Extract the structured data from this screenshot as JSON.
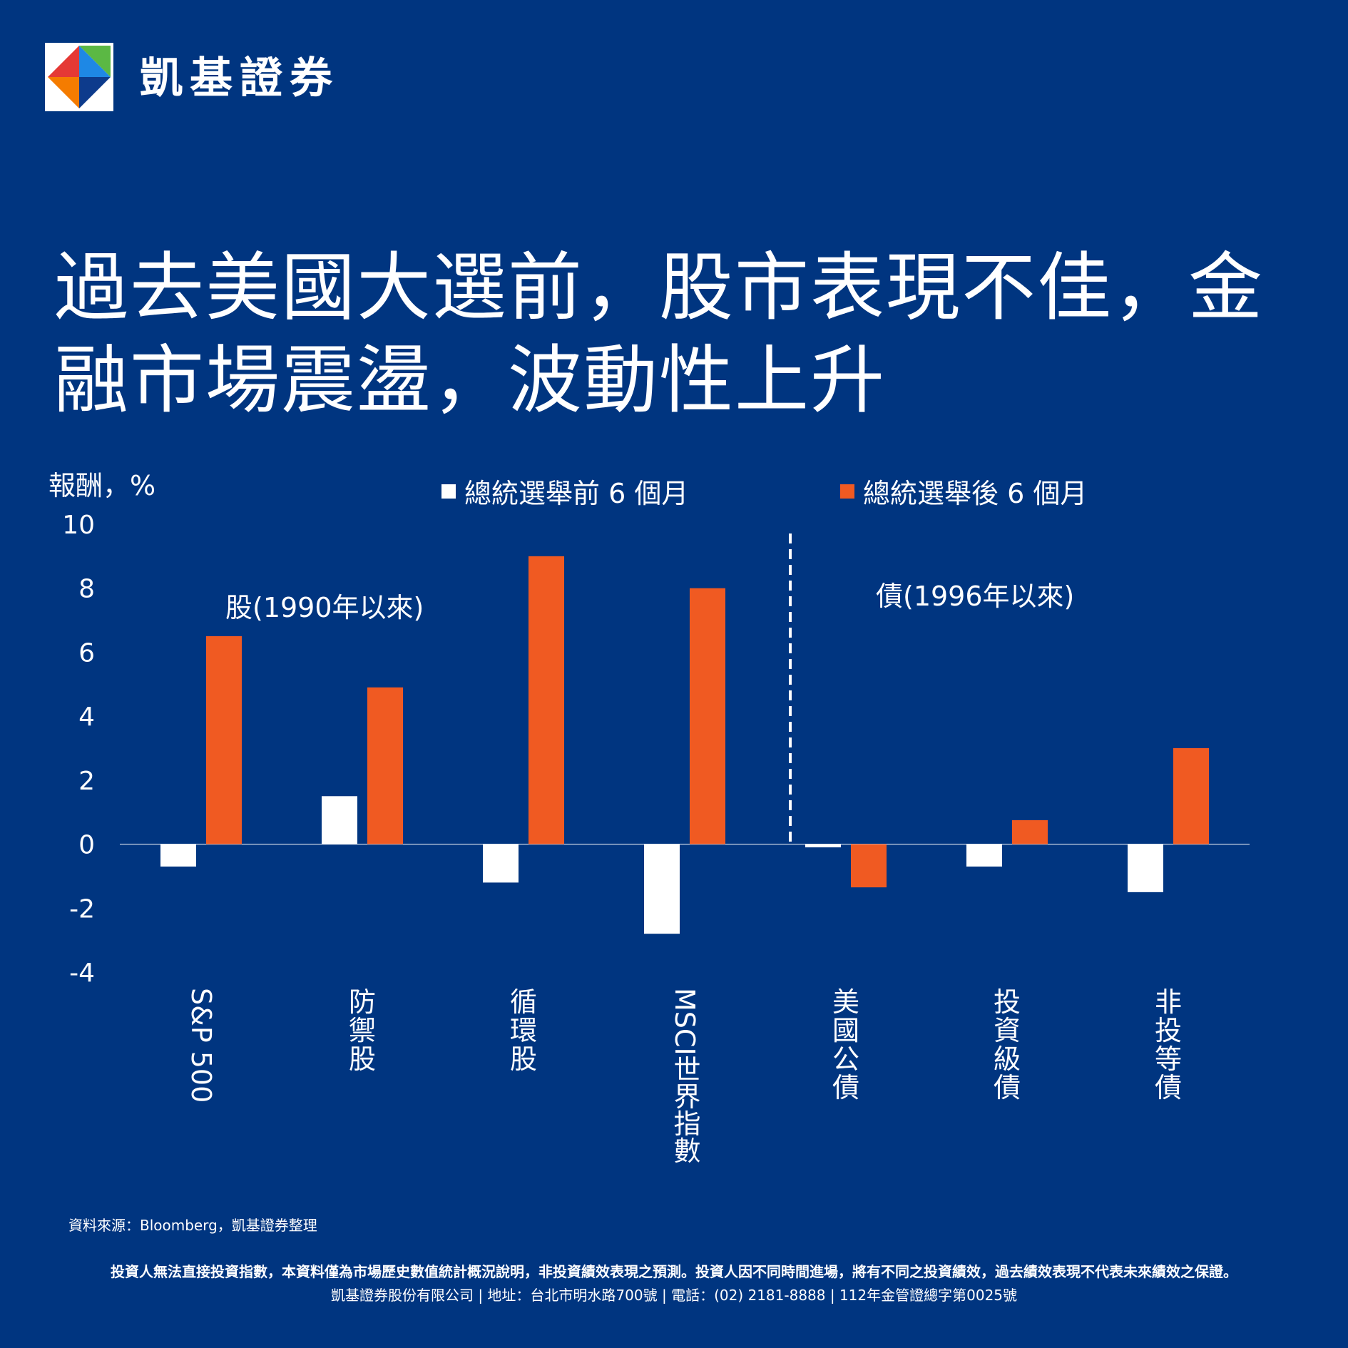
{
  "brand": {
    "name": "凱基證券"
  },
  "headline": "過去美國大選前，股市表現不佳，金融市場震盪，波動性上升",
  "legend": {
    "pre": "總統選舉前 6 個月",
    "post": "總統選舉後 6 個月"
  },
  "footer": {
    "source": "資料來源：Bloomberg，凱基證券整理",
    "disclaimer": "投資人無法直接投資指數，本資料僅為市場歷史數值統計概況說明，非投資績效表現之預測。投資人因不同時間進場，將有不同之投資績效，過去績效表現不代表未來績效之保證。",
    "company": "凱基證券股份有限公司 | 地址：台北市明水路700號 | 電話：(02) 2181-8888 | 112年金管證總字第0025號"
  },
  "colors": {
    "background": "#003580",
    "pre": "#ffffff",
    "post": "#f05a22"
  },
  "chart_data": {
    "type": "bar",
    "ylabel": "報酬，%",
    "ylim": [
      -4,
      10
    ],
    "yticks": [
      "10",
      "8",
      "6",
      "4",
      "2",
      "0",
      "-2",
      "-4"
    ],
    "categories": [
      "S&P 500",
      "防禦股",
      "循環股",
      "MSCI世界指數",
      "美國公債",
      "投資級債",
      "非投等債"
    ],
    "groups": [
      "股(1990年以來)",
      "債(1996年以來)"
    ],
    "series": [
      {
        "name": "總統選舉前 6 個月",
        "values": [
          -0.7,
          1.5,
          -1.2,
          -2.8,
          -0.1,
          -0.7,
          -1.5
        ]
      },
      {
        "name": "總統選舉後 6 個月",
        "values": [
          6.5,
          4.9,
          9.0,
          8.0,
          -1.35,
          0.75,
          3.0
        ]
      }
    ],
    "grid": false,
    "legend_position": "top"
  }
}
